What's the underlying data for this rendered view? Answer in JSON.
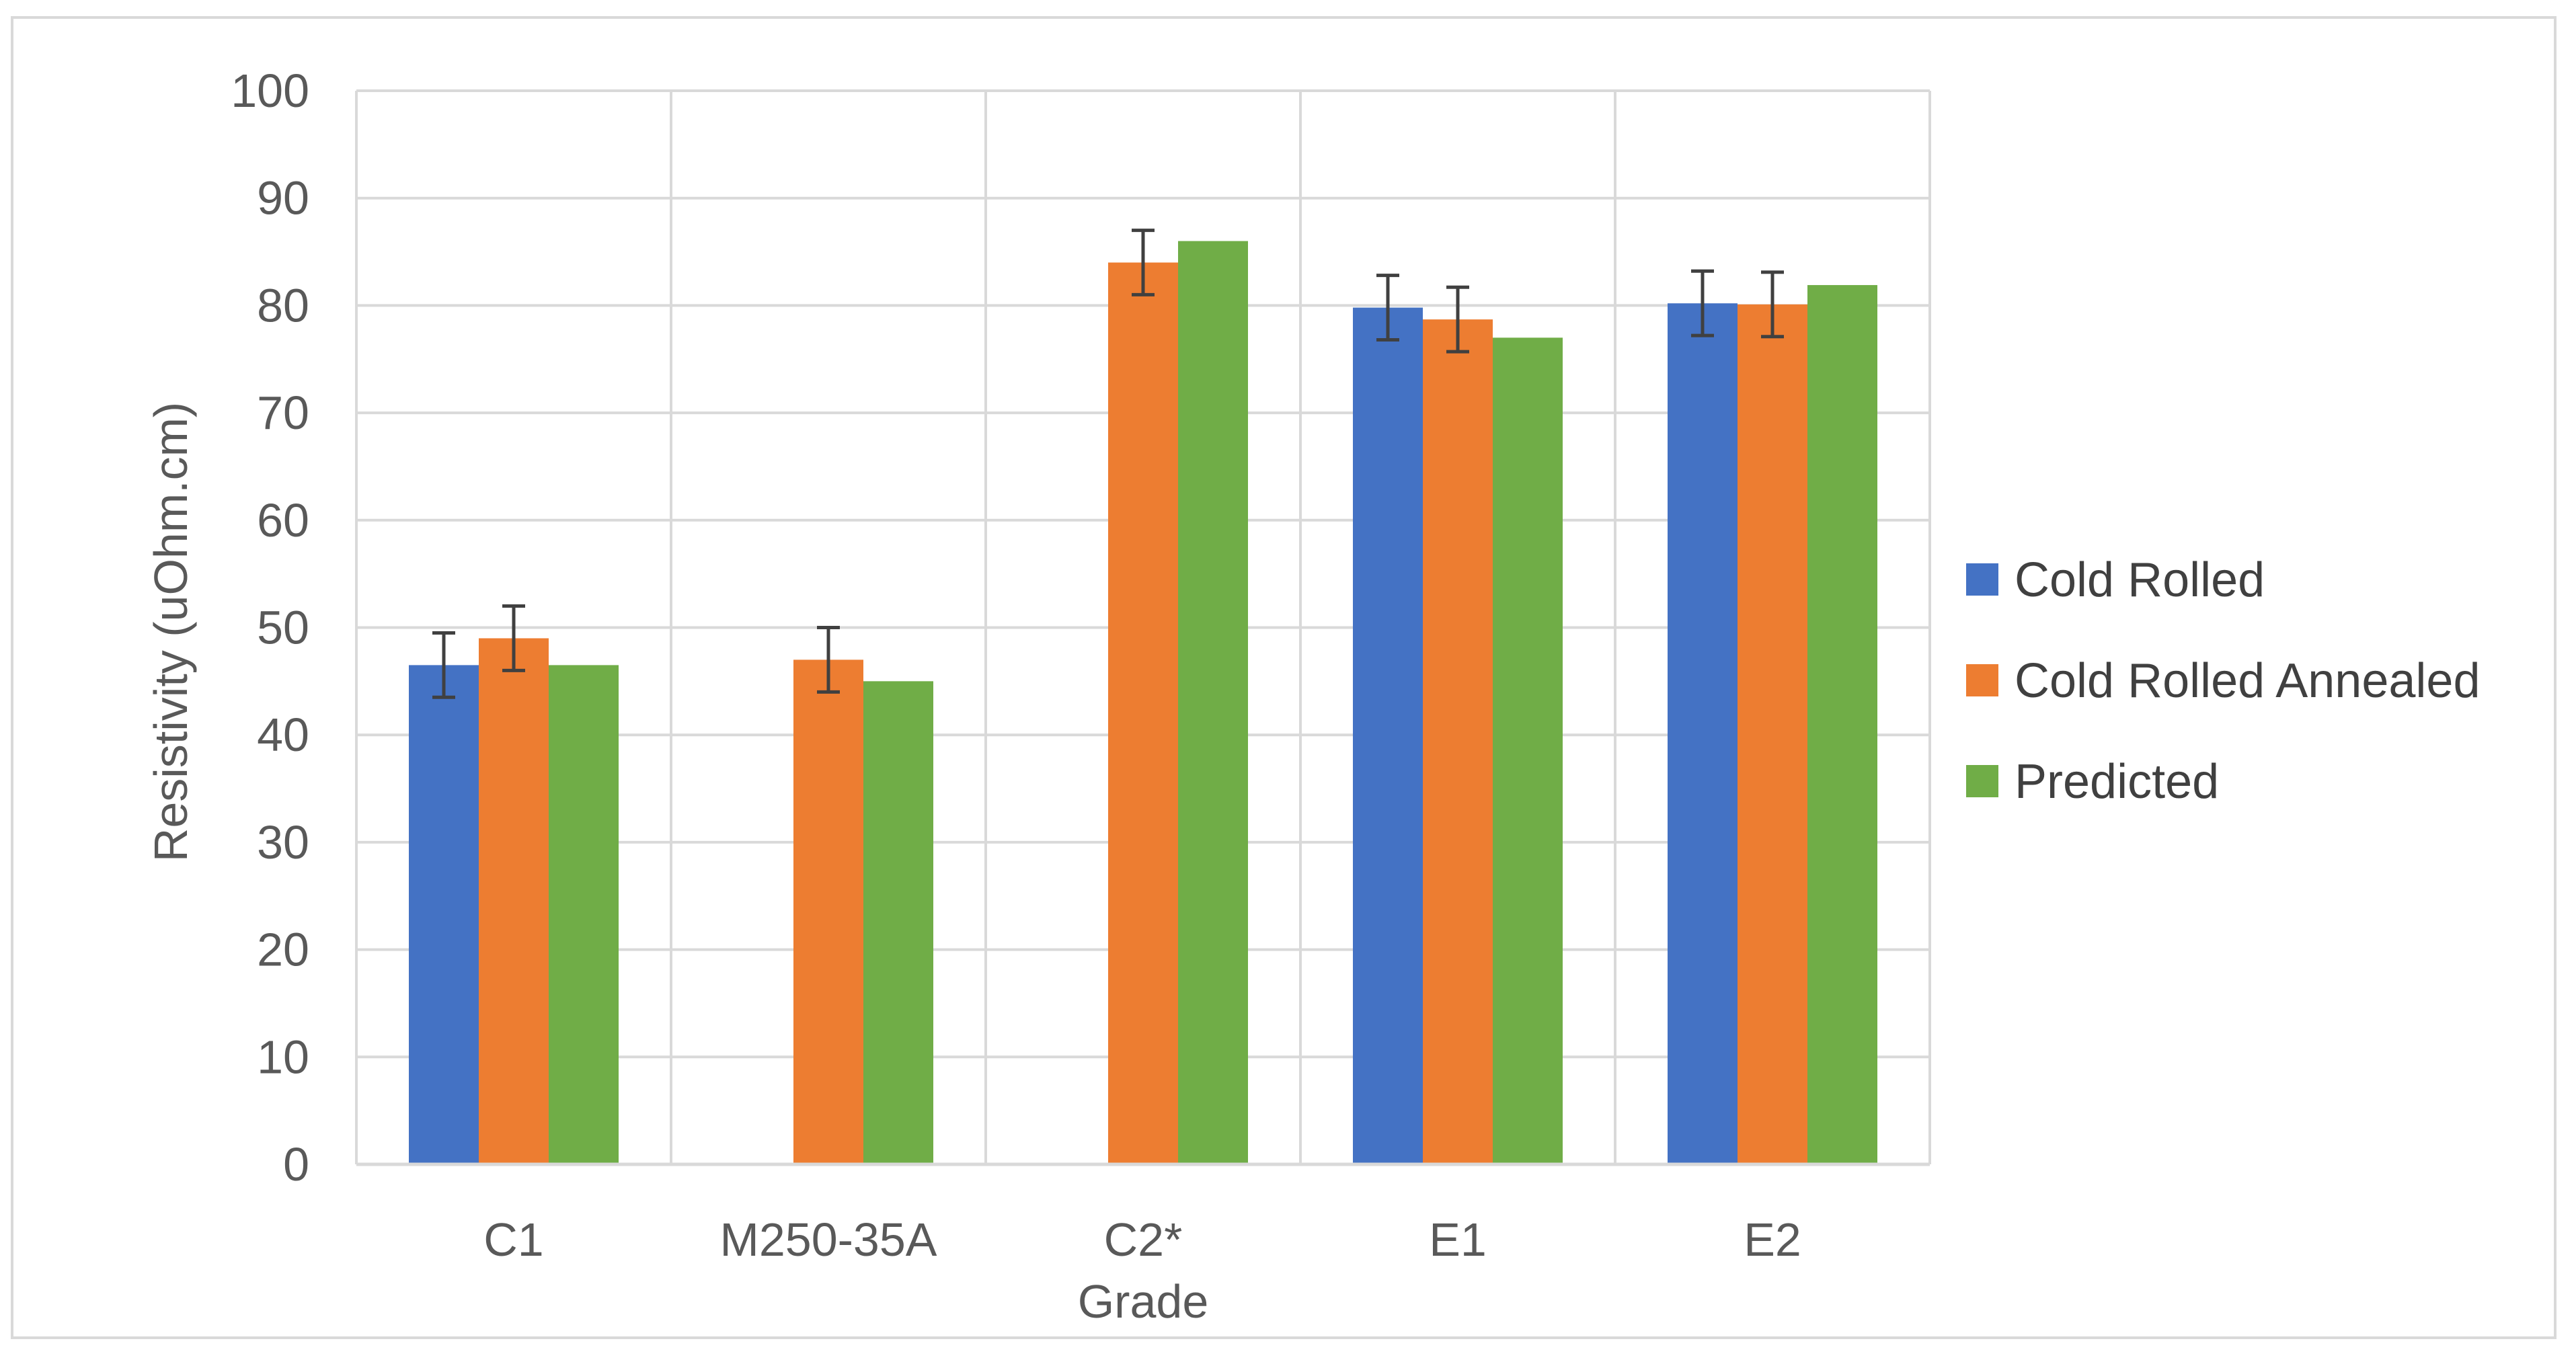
{
  "chart_data": {
    "type": "bar",
    "title": "",
    "xlabel": "Grade",
    "ylabel": "Resistivity (uOhm.cm)",
    "categories": [
      "C1",
      "M250-35A",
      "C2*",
      "E1",
      "E2"
    ],
    "ylim": [
      0,
      100
    ],
    "yticks": [
      0,
      10,
      20,
      30,
      40,
      50,
      60,
      70,
      80,
      90,
      100
    ],
    "grid": true,
    "legend_position": "right",
    "series": [
      {
        "name": "Cold Rolled",
        "color": "#4472c4",
        "values": [
          46.5,
          null,
          null,
          79.8,
          80.2
        ],
        "errors": [
          3,
          null,
          null,
          3,
          3
        ]
      },
      {
        "name": "Cold Rolled Annealed",
        "color": "#ed7d31",
        "values": [
          49,
          47,
          84,
          78.7,
          80.1
        ],
        "errors": [
          3,
          3,
          3,
          3,
          3
        ]
      },
      {
        "name": "Predicted",
        "color": "#70ad47",
        "values": [
          46.5,
          45,
          86,
          77,
          81.9
        ],
        "errors": [
          null,
          null,
          null,
          null,
          null
        ]
      }
    ]
  }
}
